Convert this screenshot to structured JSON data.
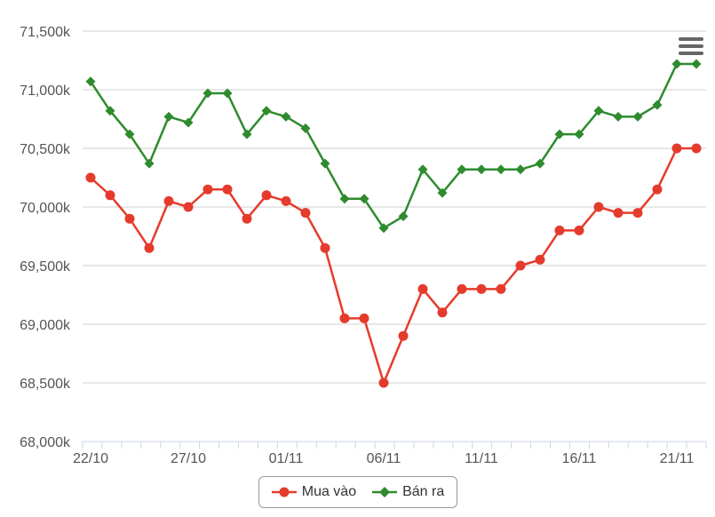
{
  "menu": {
    "icon": "hamburger-menu-icon"
  },
  "colors": {
    "buy": "#e53b2c",
    "sell": "#2e8b2e"
  },
  "chart_data": {
    "type": "line",
    "title": "",
    "xlabel": "",
    "ylabel": "",
    "ylim": [
      68000,
      71500
    ],
    "y_ticks": [
      68000,
      68500,
      69000,
      69500,
      70000,
      70500,
      71000,
      71500
    ],
    "y_tick_labels": [
      "68,000k",
      "68,500k",
      "69,000k",
      "69,500k",
      "70,000k",
      "70,500k",
      "71,000k",
      "71,500k"
    ],
    "x": [
      "22/10",
      "23/10",
      "24/10",
      "25/10",
      "26/10",
      "27/10",
      "28/10",
      "29/10",
      "30/10",
      "31/10",
      "01/11",
      "02/11",
      "03/11",
      "04/11",
      "05/11",
      "06/11",
      "07/11",
      "08/11",
      "09/11",
      "10/11",
      "11/11",
      "12/11",
      "13/11",
      "14/11",
      "15/11",
      "16/11",
      "17/11",
      "18/11",
      "19/11",
      "20/11",
      "21/11",
      "22/11"
    ],
    "x_tick_labels": [
      "22/10",
      "27/10",
      "01/11",
      "06/11",
      "11/11",
      "16/11",
      "21/11"
    ],
    "legend_position": "bottom-center",
    "grid": true,
    "series": [
      {
        "name": "Mua vào",
        "marker": "circle",
        "values": [
          70250,
          70100,
          69900,
          69650,
          70050,
          70000,
          70150,
          70150,
          69900,
          70100,
          70050,
          69950,
          69650,
          69050,
          69050,
          68500,
          68900,
          69300,
          69100,
          69300,
          69300,
          69300,
          69500,
          69550,
          69800,
          69800,
          70000,
          69950,
          69950,
          70150,
          70500,
          70500
        ]
      },
      {
        "name": "Bán ra",
        "marker": "diamond",
        "values": [
          71070,
          70820,
          70620,
          70370,
          70770,
          70720,
          70970,
          70970,
          70620,
          70820,
          70770,
          70670,
          70370,
          70070,
          70070,
          69820,
          69920,
          70320,
          70120,
          70320,
          70320,
          70320,
          70320,
          70370,
          70620,
          70620,
          70820,
          70770,
          70770,
          70870,
          71220,
          71220
        ]
      }
    ]
  }
}
